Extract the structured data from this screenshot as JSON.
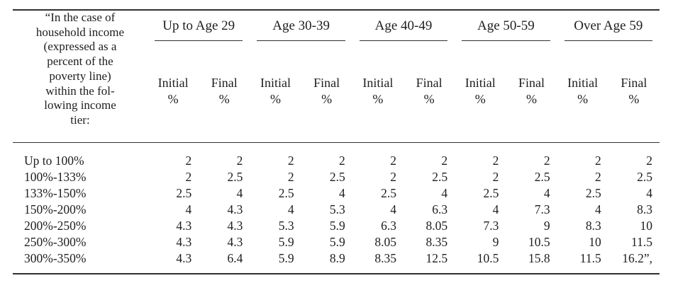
{
  "document": {
    "colors": {
      "background": "#ffffff",
      "text": "#1e1e1e",
      "rule": "#303030"
    },
    "table": {
      "corner_header": "“In the case of\nhousehold income\n(expressed as a\npercent of the\npoverty line)\nwithin the fol-\nlowing income\ntier:",
      "age_groups": [
        "Up to Age 29",
        "Age 30-39",
        "Age 40-49",
        "Age 50-59",
        "Over Age 59"
      ],
      "subheader_initial": "Initial\n%",
      "subheader_final": "Final\n%",
      "rows": [
        {
          "label": "Up to 100%",
          "values": [
            "2",
            "2",
            "2",
            "2",
            "2",
            "2",
            "2",
            "2",
            "2",
            "2"
          ]
        },
        {
          "label": "100%-133%",
          "values": [
            "2",
            "2.5",
            "2",
            "2.5",
            "2",
            "2.5",
            "2",
            "2.5",
            "2",
            "2.5"
          ]
        },
        {
          "label": "133%-150%",
          "values": [
            "2.5",
            "4",
            "2.5",
            "4",
            "2.5",
            "4",
            "2.5",
            "4",
            "2.5",
            "4"
          ]
        },
        {
          "label": "150%-200%",
          "values": [
            "4",
            "4.3",
            "4",
            "5.3",
            "4",
            "6.3",
            "4",
            "7.3",
            "4",
            "8.3"
          ]
        },
        {
          "label": "200%-250%",
          "values": [
            "4.3",
            "4.3",
            "5.3",
            "5.9",
            "6.3",
            "8.05",
            "7.3",
            "9",
            "8.3",
            "10"
          ]
        },
        {
          "label": "250%-300%",
          "values": [
            "4.3",
            "4.3",
            "5.9",
            "5.9",
            "8.05",
            "8.35",
            "9",
            "10.5",
            "10",
            "11.5"
          ]
        },
        {
          "label": "300%-350%",
          "values": [
            "4.3",
            "6.4",
            "5.9",
            "8.9",
            "8.35",
            "12.5",
            "10.5",
            "15.8",
            "11.5",
            "16.2”,"
          ]
        }
      ]
    }
  }
}
